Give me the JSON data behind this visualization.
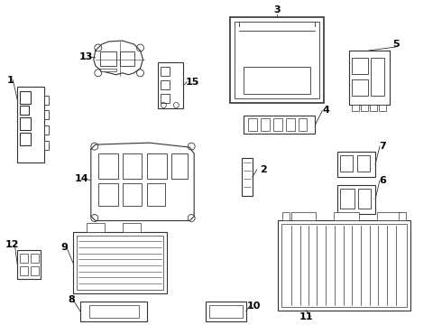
{
  "bg_color": "#ffffff",
  "line_color": "#333333",
  "label_color": "#000000"
}
